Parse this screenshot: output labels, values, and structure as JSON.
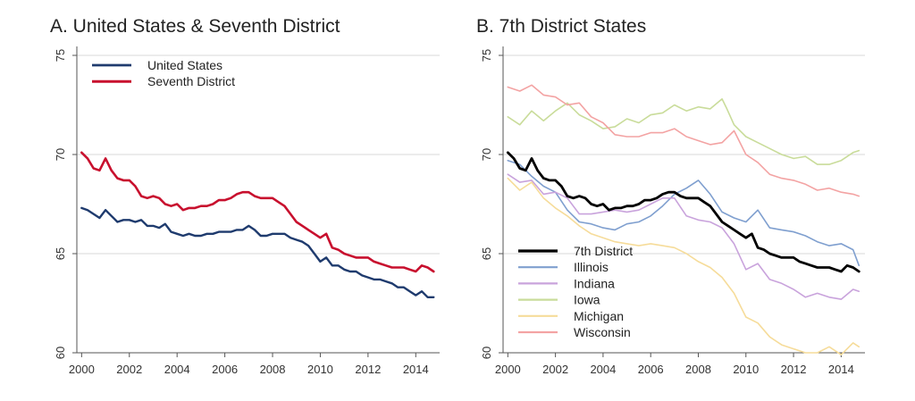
{
  "colors": {
    "grid": "#d9d9d9",
    "axis": "#555555",
    "us": "#1f3b6e",
    "seventh": "#c8102e",
    "seventh_b": "#000000",
    "illinois": "#7f9fcf",
    "indiana": "#c9a3dc",
    "iowa": "#c9dc9a",
    "michigan": "#f6dc9a",
    "wisconsin": "#f3a3a3"
  },
  "chart_data": [
    {
      "panel_title": "A. United States & Seventh District",
      "type": "line",
      "ylim": [
        60,
        75
      ],
      "xlim": [
        1999.8,
        2015.0
      ],
      "yticks": [
        60,
        65,
        70,
        75
      ],
      "xticks": [
        2000,
        2002,
        2004,
        2006,
        2008,
        2010,
        2012,
        2014
      ],
      "grid": true,
      "legend": "top-left",
      "series": [
        {
          "name": "United States",
          "color_key": "us",
          "width": 2.4,
          "x": [
            2000.0,
            2000.25,
            2000.5,
            2000.75,
            2001.0,
            2001.25,
            2001.5,
            2001.75,
            2002.0,
            2002.25,
            2002.5,
            2002.75,
            2003.0,
            2003.25,
            2003.5,
            2003.75,
            2004.0,
            2004.25,
            2004.5,
            2004.75,
            2005.0,
            2005.25,
            2005.5,
            2005.75,
            2006.0,
            2006.25,
            2006.5,
            2006.75,
            2007.0,
            2007.25,
            2007.5,
            2007.75,
            2008.0,
            2008.25,
            2008.5,
            2008.75,
            2009.0,
            2009.25,
            2009.5,
            2009.75,
            2010.0,
            2010.25,
            2010.5,
            2010.75,
            2011.0,
            2011.25,
            2011.5,
            2011.75,
            2012.0,
            2012.25,
            2012.5,
            2012.75,
            2013.0,
            2013.25,
            2013.5,
            2013.75,
            2014.0,
            2014.25,
            2014.5,
            2014.75
          ],
          "y": [
            67.3,
            67.2,
            67.0,
            66.8,
            67.2,
            66.9,
            66.6,
            66.7,
            66.7,
            66.6,
            66.7,
            66.4,
            66.4,
            66.3,
            66.5,
            66.1,
            66.0,
            65.9,
            66.0,
            65.9,
            65.9,
            66.0,
            66.0,
            66.1,
            66.1,
            66.1,
            66.2,
            66.2,
            66.4,
            66.2,
            65.9,
            65.9,
            66.0,
            66.0,
            66.0,
            65.8,
            65.7,
            65.6,
            65.4,
            65.0,
            64.6,
            64.8,
            64.4,
            64.4,
            64.2,
            64.1,
            64.1,
            63.9,
            63.8,
            63.7,
            63.7,
            63.6,
            63.5,
            63.3,
            63.3,
            63.1,
            62.9,
            63.1,
            62.8,
            62.8
          ]
        },
        {
          "name": "Seventh District",
          "color_key": "seventh",
          "width": 2.6,
          "x": [
            2000.0,
            2000.25,
            2000.5,
            2000.75,
            2001.0,
            2001.25,
            2001.5,
            2001.75,
            2002.0,
            2002.25,
            2002.5,
            2002.75,
            2003.0,
            2003.25,
            2003.5,
            2003.75,
            2004.0,
            2004.25,
            2004.5,
            2004.75,
            2005.0,
            2005.25,
            2005.5,
            2005.75,
            2006.0,
            2006.25,
            2006.5,
            2006.75,
            2007.0,
            2007.25,
            2007.5,
            2007.75,
            2008.0,
            2008.25,
            2008.5,
            2008.75,
            2009.0,
            2009.25,
            2009.5,
            2009.75,
            2010.0,
            2010.25,
            2010.5,
            2010.75,
            2011.0,
            2011.25,
            2011.5,
            2011.75,
            2012.0,
            2012.25,
            2012.5,
            2012.75,
            2013.0,
            2013.25,
            2013.5,
            2013.75,
            2014.0,
            2014.25,
            2014.5,
            2014.75
          ],
          "y": [
            70.1,
            69.8,
            69.3,
            69.2,
            69.8,
            69.2,
            68.8,
            68.7,
            68.7,
            68.4,
            67.9,
            67.8,
            67.9,
            67.8,
            67.5,
            67.4,
            67.5,
            67.2,
            67.3,
            67.3,
            67.4,
            67.4,
            67.5,
            67.7,
            67.7,
            67.8,
            68.0,
            68.1,
            68.1,
            67.9,
            67.8,
            67.8,
            67.8,
            67.6,
            67.4,
            67.0,
            66.6,
            66.4,
            66.2,
            66.0,
            65.8,
            66.0,
            65.3,
            65.2,
            65.0,
            64.9,
            64.8,
            64.8,
            64.8,
            64.6,
            64.5,
            64.4,
            64.3,
            64.3,
            64.3,
            64.2,
            64.1,
            64.4,
            64.3,
            64.1
          ]
        }
      ]
    },
    {
      "panel_title": "B. 7th District States",
      "type": "line",
      "ylim": [
        60,
        75
      ],
      "xlim": [
        1999.8,
        2015.0
      ],
      "yticks": [
        60,
        65,
        70,
        75
      ],
      "xticks": [
        2000,
        2002,
        2004,
        2006,
        2008,
        2010,
        2012,
        2014
      ],
      "grid": true,
      "legend": "bottom-left",
      "series": [
        {
          "name": "7th District",
          "color_key": "seventh_b",
          "width": 2.8,
          "x": [
            2000.0,
            2000.25,
            2000.5,
            2000.75,
            2001.0,
            2001.25,
            2001.5,
            2001.75,
            2002.0,
            2002.25,
            2002.5,
            2002.75,
            2003.0,
            2003.25,
            2003.5,
            2003.75,
            2004.0,
            2004.25,
            2004.5,
            2004.75,
            2005.0,
            2005.25,
            2005.5,
            2005.75,
            2006.0,
            2006.25,
            2006.5,
            2006.75,
            2007.0,
            2007.25,
            2007.5,
            2007.75,
            2008.0,
            2008.25,
            2008.5,
            2008.75,
            2009.0,
            2009.25,
            2009.5,
            2009.75,
            2010.0,
            2010.25,
            2010.5,
            2010.75,
            2011.0,
            2011.25,
            2011.5,
            2011.75,
            2012.0,
            2012.25,
            2012.5,
            2012.75,
            2013.0,
            2013.25,
            2013.5,
            2013.75,
            2014.0,
            2014.25,
            2014.5,
            2014.75
          ],
          "y": [
            70.1,
            69.8,
            69.3,
            69.2,
            69.8,
            69.2,
            68.8,
            68.7,
            68.7,
            68.4,
            67.9,
            67.8,
            67.9,
            67.8,
            67.5,
            67.4,
            67.5,
            67.2,
            67.3,
            67.3,
            67.4,
            67.4,
            67.5,
            67.7,
            67.7,
            67.8,
            68.0,
            68.1,
            68.1,
            67.9,
            67.8,
            67.8,
            67.8,
            67.6,
            67.4,
            67.0,
            66.6,
            66.4,
            66.2,
            66.0,
            65.8,
            66.0,
            65.3,
            65.2,
            65.0,
            64.9,
            64.8,
            64.8,
            64.8,
            64.6,
            64.5,
            64.4,
            64.3,
            64.3,
            64.3,
            64.2,
            64.1,
            64.4,
            64.3,
            64.1
          ]
        },
        {
          "name": "Illinois",
          "color_key": "illinois",
          "width": 1.6,
          "x": [
            2000.0,
            2000.5,
            2001.0,
            2001.5,
            2002.0,
            2002.5,
            2003.0,
            2003.5,
            2004.0,
            2004.5,
            2005.0,
            2005.5,
            2006.0,
            2006.5,
            2007.0,
            2007.5,
            2008.0,
            2008.5,
            2009.0,
            2009.5,
            2010.0,
            2010.5,
            2011.0,
            2011.5,
            2012.0,
            2012.5,
            2013.0,
            2013.5,
            2014.0,
            2014.5,
            2014.75
          ],
          "y": [
            69.7,
            69.5,
            68.9,
            68.4,
            68.1,
            67.2,
            66.6,
            66.5,
            66.3,
            66.2,
            66.5,
            66.6,
            66.9,
            67.4,
            68.0,
            68.3,
            68.7,
            68.0,
            67.1,
            66.8,
            66.6,
            67.2,
            66.3,
            66.2,
            66.1,
            65.9,
            65.6,
            65.4,
            65.5,
            65.2,
            64.4
          ]
        },
        {
          "name": "Indiana",
          "color_key": "indiana",
          "width": 1.6,
          "x": [
            2000.0,
            2000.5,
            2001.0,
            2001.5,
            2002.0,
            2002.5,
            2003.0,
            2003.5,
            2004.0,
            2004.5,
            2005.0,
            2005.5,
            2006.0,
            2006.5,
            2007.0,
            2007.5,
            2008.0,
            2008.5,
            2009.0,
            2009.5,
            2010.0,
            2010.5,
            2011.0,
            2011.5,
            2012.0,
            2012.5,
            2013.0,
            2013.5,
            2014.0,
            2014.5,
            2014.75
          ],
          "y": [
            69.0,
            68.6,
            68.7,
            68.0,
            68.1,
            67.8,
            67.0,
            67.0,
            67.1,
            67.2,
            67.1,
            67.2,
            67.5,
            67.8,
            67.8,
            66.9,
            66.7,
            66.6,
            66.3,
            65.5,
            64.2,
            64.5,
            63.7,
            63.5,
            63.2,
            62.8,
            63.0,
            62.8,
            62.7,
            63.2,
            63.1
          ]
        },
        {
          "name": "Iowa",
          "color_key": "iowa",
          "width": 1.6,
          "x": [
            2000.0,
            2000.5,
            2001.0,
            2001.5,
            2002.0,
            2002.5,
            2003.0,
            2003.5,
            2004.0,
            2004.5,
            2005.0,
            2005.5,
            2006.0,
            2006.5,
            2007.0,
            2007.5,
            2008.0,
            2008.5,
            2009.0,
            2009.2,
            2009.5,
            2010.0,
            2010.5,
            2011.0,
            2011.5,
            2012.0,
            2012.5,
            2013.0,
            2013.5,
            2014.0,
            2014.5,
            2014.75
          ],
          "y": [
            71.9,
            71.5,
            72.2,
            71.7,
            72.2,
            72.6,
            72.0,
            71.7,
            71.3,
            71.4,
            71.8,
            71.6,
            72.0,
            72.1,
            72.5,
            72.2,
            72.4,
            72.3,
            72.8,
            72.3,
            71.5,
            70.9,
            70.6,
            70.3,
            70.0,
            69.8,
            69.9,
            69.5,
            69.5,
            69.7,
            70.1,
            70.2
          ]
        },
        {
          "name": "Michigan",
          "color_key": "michigan",
          "width": 1.6,
          "x": [
            2000.0,
            2000.5,
            2001.0,
            2001.5,
            2002.0,
            2002.5,
            2003.0,
            2003.5,
            2004.0,
            2004.5,
            2005.0,
            2005.5,
            2006.0,
            2006.5,
            2007.0,
            2007.5,
            2008.0,
            2008.5,
            2009.0,
            2009.5,
            2010.0,
            2010.5,
            2011.0,
            2011.5,
            2012.0,
            2012.5,
            2013.0,
            2013.5,
            2014.0,
            2014.5,
            2014.75
          ],
          "y": [
            68.8,
            68.2,
            68.6,
            67.8,
            67.3,
            66.9,
            66.4,
            66.0,
            65.8,
            65.6,
            65.5,
            65.4,
            65.5,
            65.4,
            65.3,
            65.0,
            64.6,
            64.3,
            63.8,
            63.0,
            61.8,
            61.5,
            60.8,
            60.4,
            60.2,
            60.0,
            60.0,
            60.3,
            59.9,
            60.5,
            60.3
          ]
        },
        {
          "name": "Wisconsin",
          "color_key": "wisconsin",
          "width": 1.6,
          "x": [
            2000.0,
            2000.5,
            2001.0,
            2001.5,
            2002.0,
            2002.5,
            2003.0,
            2003.5,
            2004.0,
            2004.5,
            2005.0,
            2005.5,
            2006.0,
            2006.5,
            2007.0,
            2007.5,
            2008.0,
            2008.5,
            2009.0,
            2009.5,
            2010.0,
            2010.5,
            2011.0,
            2011.5,
            2012.0,
            2012.5,
            2013.0,
            2013.5,
            2014.0,
            2014.5,
            2014.75
          ],
          "y": [
            73.4,
            73.2,
            73.5,
            73.0,
            72.9,
            72.5,
            72.6,
            71.9,
            71.6,
            71.0,
            70.9,
            70.9,
            71.1,
            71.1,
            71.3,
            70.9,
            70.7,
            70.5,
            70.6,
            71.2,
            70.0,
            69.6,
            69.0,
            68.8,
            68.7,
            68.5,
            68.2,
            68.3,
            68.1,
            68.0,
            67.9
          ]
        }
      ]
    }
  ]
}
